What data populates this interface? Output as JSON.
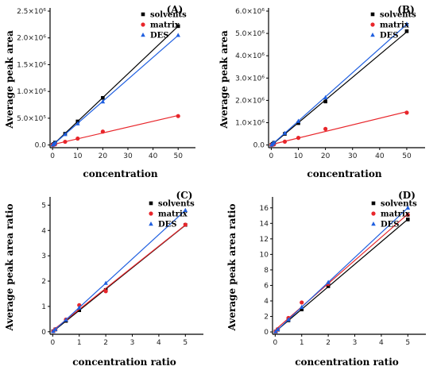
{
  "chart_data": [
    {
      "type": "scatter",
      "panel_tag": "(A)",
      "xlabel": "concentration",
      "ylabel": "Average peak area",
      "xlim": [
        -1,
        55
      ],
      "ylim": [
        -50000,
        2500000
      ],
      "xticks": [
        0,
        10,
        20,
        30,
        40,
        50
      ],
      "xtick_labels": [
        "0",
        "10",
        "20",
        "30",
        "40",
        "50"
      ],
      "yticks": [
        0,
        500000,
        1000000,
        1500000,
        2000000,
        2500000
      ],
      "ytick_labels": [
        "0.0",
        "5.0×10⁵",
        "1.0×10⁶",
        "1.5×10⁶",
        "2.0×10⁶",
        "2.5×10⁶"
      ],
      "legend_position": "top-right",
      "series": [
        {
          "name": "solvents",
          "color": "#000000",
          "marker": "square",
          "x": [
            0.1,
            0.5,
            1,
            5,
            10,
            20,
            50
          ],
          "y": [
            5000,
            20000,
            45000,
            210000,
            440000,
            880000,
            2220000
          ]
        },
        {
          "name": "matrix",
          "color": "#e8262b",
          "marker": "circle",
          "x": [
            0.1,
            0.5,
            1,
            5,
            10,
            20,
            50
          ],
          "y": [
            2000,
            6000,
            12000,
            60000,
            120000,
            250000,
            540000
          ]
        },
        {
          "name": "DES",
          "color": "#1f5fe0",
          "marker": "triangle",
          "x": [
            0.1,
            0.5,
            1,
            5,
            10,
            20,
            50
          ],
          "y": [
            4500,
            18000,
            40000,
            200000,
            400000,
            810000,
            2050000
          ]
        }
      ]
    },
    {
      "type": "scatter",
      "panel_tag": "(B)",
      "xlabel": "concentration",
      "ylabel": "Average peak area",
      "xlim": [
        -1,
        55
      ],
      "ylim": [
        -120000,
        6000000
      ],
      "xticks": [
        0,
        10,
        20,
        30,
        40,
        50
      ],
      "xtick_labels": [
        "0",
        "10",
        "20",
        "30",
        "40",
        "50"
      ],
      "yticks": [
        0,
        1000000,
        2000000,
        3000000,
        4000000,
        5000000,
        6000000
      ],
      "ytick_labels": [
        "0.0",
        "1.0×10⁶",
        "2.0×10⁶",
        "3.0×10⁶",
        "4.0×10⁶",
        "5.0×10⁶",
        "6.0×10⁶"
      ],
      "legend_position": "top-right",
      "series": [
        {
          "name": "solvents",
          "color": "#000000",
          "marker": "square",
          "x": [
            0.1,
            0.5,
            1,
            5,
            10,
            20,
            50
          ],
          "y": [
            10000,
            50000,
            100000,
            500000,
            980000,
            1950000,
            5100000
          ]
        },
        {
          "name": "matrix",
          "color": "#e8262b",
          "marker": "circle",
          "x": [
            0.1,
            0.5,
            1,
            5,
            10,
            20,
            50
          ],
          "y": [
            3000,
            15000,
            30000,
            150000,
            320000,
            720000,
            1450000
          ]
        },
        {
          "name": "DES",
          "color": "#1f5fe0",
          "marker": "triangle",
          "x": [
            0.1,
            0.5,
            1,
            5,
            10,
            20,
            50
          ],
          "y": [
            11000,
            55000,
            110000,
            530000,
            1070000,
            2130000,
            5420000
          ]
        }
      ]
    },
    {
      "type": "scatter",
      "panel_tag": "(C)",
      "xlabel": "concentration ratio",
      "ylabel": "Average peak area ratio",
      "xlim": [
        -0.1,
        5.5
      ],
      "ylim": [
        -0.1,
        5.2
      ],
      "xticks": [
        0,
        1,
        2,
        3,
        4,
        5
      ],
      "xtick_labels": [
        "0",
        "1",
        "2",
        "3",
        "4",
        "5"
      ],
      "yticks": [
        0,
        1,
        2,
        3,
        4,
        5
      ],
      "ytick_labels": [
        "0",
        "1",
        "2",
        "3",
        "4",
        "5"
      ],
      "legend_position": "top-right",
      "series": [
        {
          "name": "solvents",
          "color": "#000000",
          "marker": "square",
          "x": [
            0.02,
            0.1,
            0.5,
            1,
            2,
            5
          ],
          "y": [
            0.02,
            0.09,
            0.43,
            0.85,
            1.65,
            4.22
          ]
        },
        {
          "name": "matrix",
          "color": "#e8262b",
          "marker": "circle",
          "x": [
            0.02,
            0.1,
            0.5,
            1,
            2,
            5
          ],
          "y": [
            0.02,
            0.1,
            0.48,
            1.05,
            1.6,
            4.23
          ]
        },
        {
          "name": "DES",
          "color": "#1f5fe0",
          "marker": "triangle",
          "x": [
            0.02,
            0.1,
            0.5,
            1,
            2,
            5
          ],
          "y": [
            0.02,
            0.1,
            0.47,
            0.95,
            1.92,
            4.8
          ]
        }
      ]
    },
    {
      "type": "scatter",
      "panel_tag": "(D)",
      "xlabel": "concentration ratio",
      "ylabel": "Average peak area ratio",
      "xlim": [
        -0.1,
        5.5
      ],
      "ylim": [
        -0.3,
        17
      ],
      "xticks": [
        0,
        1,
        2,
        3,
        4,
        5
      ],
      "xtick_labels": [
        "0",
        "1",
        "2",
        "3",
        "4",
        "5"
      ],
      "yticks": [
        0,
        2,
        4,
        6,
        8,
        10,
        12,
        14,
        16
      ],
      "ytick_labels": [
        "0",
        "2",
        "4",
        "6",
        "8",
        "10",
        "12",
        "14",
        "16"
      ],
      "legend_position": "top-right",
      "series": [
        {
          "name": "solvents",
          "color": "#000000",
          "marker": "square",
          "x": [
            0.02,
            0.1,
            0.5,
            1,
            2,
            5
          ],
          "y": [
            0.05,
            0.3,
            1.5,
            2.9,
            5.9,
            14.5
          ]
        },
        {
          "name": "matrix",
          "color": "#e8262b",
          "marker": "circle",
          "x": [
            0.02,
            0.1,
            0.5,
            1,
            2,
            5
          ],
          "y": [
            0.06,
            0.35,
            1.8,
            3.8,
            6.2,
            15.1
          ]
        },
        {
          "name": "DES",
          "color": "#1f5fe0",
          "marker": "triangle",
          "x": [
            0.02,
            0.1,
            0.5,
            1,
            2,
            5
          ],
          "y": [
            0.06,
            0.33,
            1.6,
            3.2,
            6.4,
            16.0
          ]
        }
      ]
    }
  ]
}
